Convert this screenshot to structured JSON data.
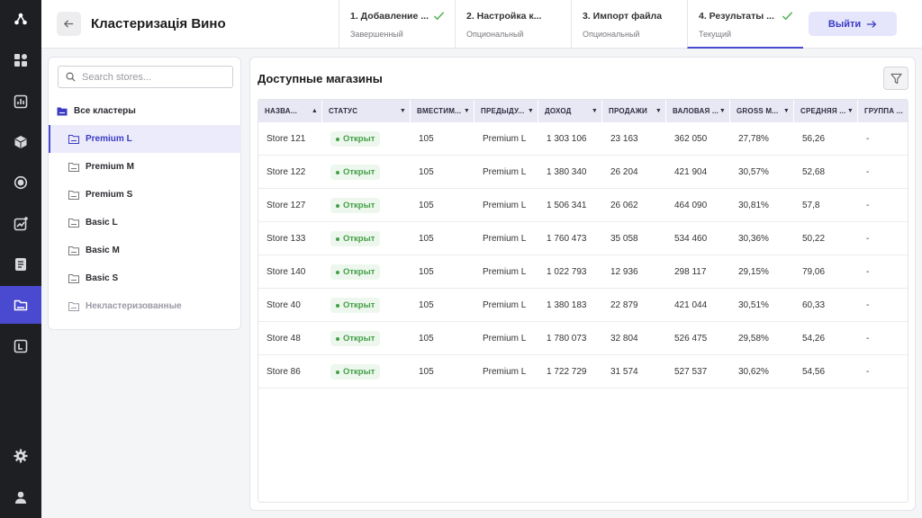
{
  "header": {
    "title": "Кластеризація Вино",
    "exit_label": "Выйти",
    "steps": [
      {
        "label": "1. Добавление ...",
        "sub": "Завершенный",
        "done": true
      },
      {
        "label": "2. Настройка к...",
        "sub": "Опциональный",
        "done": false
      },
      {
        "label": "3. Импорт файла",
        "sub": "Опциональный",
        "done": false
      },
      {
        "label": "4. Результаты ...",
        "sub": "Текущий",
        "done": true
      }
    ]
  },
  "search": {
    "placeholder": "Search stores..."
  },
  "tree": {
    "root": "Все кластеры",
    "items": [
      "Premium L",
      "Premium M",
      "Premium S",
      "Basic L",
      "Basic M",
      "Basic S",
      "Некластеризованные"
    ]
  },
  "main": {
    "title": "Доступные магазины"
  },
  "table": {
    "columns": [
      "НАЗВА...",
      "СТАТУС",
      "ВМЕСТИМ...",
      "ПРЕДЫДУ...",
      "ДОХОД",
      "ПРОДАЖИ",
      "ВАЛОВАЯ ...",
      "GROSS M...",
      "СРЕДНЯЯ ...",
      "ГРУППА ..."
    ],
    "rows": [
      [
        "Store 121",
        "Открыт",
        "105",
        "Premium L",
        "1 303 106",
        "23 163",
        "362 050",
        "27,78%",
        "56,26",
        "-"
      ],
      [
        "Store 122",
        "Открыт",
        "105",
        "Premium L",
        "1 380 340",
        "26 204",
        "421 904",
        "30,57%",
        "52,68",
        "-"
      ],
      [
        "Store 127",
        "Открыт",
        "105",
        "Premium L",
        "1 506 341",
        "26 062",
        "464 090",
        "30,81%",
        "57,8",
        "-"
      ],
      [
        "Store 133",
        "Открыт",
        "105",
        "Premium L",
        "1 760 473",
        "35 058",
        "534 460",
        "30,36%",
        "50,22",
        "-"
      ],
      [
        "Store 140",
        "Открыт",
        "105",
        "Premium L",
        "1 022 793",
        "12 936",
        "298 117",
        "29,15%",
        "79,06",
        "-"
      ],
      [
        "Store 40",
        "Открыт",
        "105",
        "Premium L",
        "1 380 183",
        "22 879",
        "421 044",
        "30,51%",
        "60,33",
        "-"
      ],
      [
        "Store 48",
        "Открыт",
        "105",
        "Premium L",
        "1 780 073",
        "32 804",
        "526 475",
        "29,58%",
        "54,26",
        "-"
      ],
      [
        "Store 86",
        "Открыт",
        "105",
        "Premium L",
        "1 722 729",
        "31 574",
        "527 537",
        "30,62%",
        "54,56",
        "-"
      ]
    ]
  },
  "colors": {
    "accent": "#4a4ad0",
    "status_green": "#43a047",
    "rail": "#1e1f23"
  }
}
